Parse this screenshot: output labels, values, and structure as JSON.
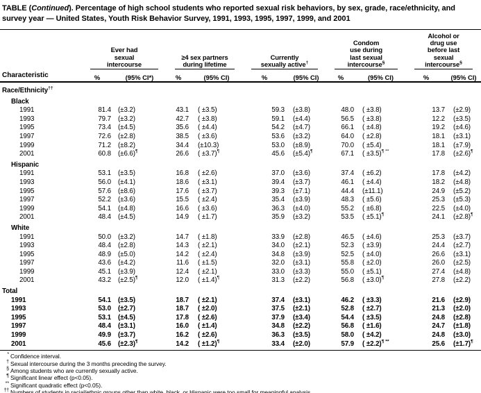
{
  "title": {
    "part1": "TABLE (",
    "italic": "Continued",
    "part2": "). Percentage of high school students who reported sexual risk behaviors, by sex, grade, race/ethnicity, and survey year — United States, Youth Risk Behavior Survey, 1991, 1993, 1995, 1997, 1999, and 2001"
  },
  "header": {
    "characteristic": "Characteristic",
    "groups": [
      {
        "lines": [
          "Ever had",
          "sexual",
          "intercourse"
        ],
        "pct": "%",
        "ci": "(95% CI*)"
      },
      {
        "lines": [
          "≥4 sex partners",
          "during lifetime"
        ],
        "pct": "%",
        "ci": "(95% CI)"
      },
      {
        "lines": [
          "Currently",
          {
            "text": "sexually active",
            "sup": "†"
          }
        ],
        "pct": "%",
        "ci": "(95% CI)"
      },
      {
        "lines": [
          "Condom",
          "use during",
          "last sexual",
          {
            "text": "intercourse",
            "sup": "§"
          }
        ],
        "pct": "%",
        "ci": "(95% CI)"
      },
      {
        "lines": [
          "Alcohol or",
          "drug use",
          "before last",
          "sexual",
          {
            "text": "intercourse",
            "sup": "§"
          }
        ],
        "pct": "%",
        "ci": "(95% CI)"
      }
    ]
  },
  "sections": [
    {
      "label": "Race/Ethnicity",
      "sup": "††",
      "level": 0,
      "row_indent": 2,
      "bold_rows": false,
      "rows": []
    },
    {
      "label": "Black",
      "sup": "",
      "level": 1,
      "row_indent": 2,
      "bold_rows": false,
      "rows": [
        {
          "label": "1991",
          "cells": [
            [
              "81.4",
              "(±3.2)",
              ""
            ],
            [
              "43.1",
              "( ±3.5)",
              ""
            ],
            [
              "59.3",
              "(±3.8)",
              ""
            ],
            [
              "48.0",
              "( ±3.8)",
              ""
            ],
            [
              "13.7",
              "(±2.9)",
              ""
            ]
          ]
        },
        {
          "label": "1993",
          "cells": [
            [
              "79.7",
              "(±3.2)",
              ""
            ],
            [
              "42.7",
              "( ±3.8)",
              ""
            ],
            [
              "59.1",
              "(±4.4)",
              ""
            ],
            [
              "56.5",
              "( ±3.8)",
              ""
            ],
            [
              "12.2",
              "(±3.5)",
              ""
            ]
          ]
        },
        {
          "label": "1995",
          "cells": [
            [
              "73.4",
              "(±4.5)",
              ""
            ],
            [
              "35.6",
              "( ±4.4)",
              ""
            ],
            [
              "54.2",
              "(±4.7)",
              ""
            ],
            [
              "66.1",
              "( ±4.8)",
              ""
            ],
            [
              "19.2",
              "(±4.6)",
              ""
            ]
          ]
        },
        {
          "label": "1997",
          "cells": [
            [
              "72.6",
              "(±2.8)",
              ""
            ],
            [
              "38.5",
              "( ±3.6)",
              ""
            ],
            [
              "53.6",
              "(±3.2)",
              ""
            ],
            [
              "64.0",
              "( ±2.8)",
              ""
            ],
            [
              "18.1",
              "(±3.1)",
              ""
            ]
          ]
        },
        {
          "label": "1999",
          "cells": [
            [
              "71.2",
              "(±8.2)",
              ""
            ],
            [
              "34.4",
              "(±10.3)",
              ""
            ],
            [
              "53.0",
              "(±8.9)",
              ""
            ],
            [
              "70.0",
              "( ±5.4)",
              ""
            ],
            [
              "18.1",
              "(±7.9)",
              ""
            ]
          ]
        },
        {
          "label": "2001",
          "cells": [
            [
              "60.8",
              "(±6.6)",
              "¶"
            ],
            [
              "26.6",
              "( ±3.7)",
              "¶"
            ],
            [
              "45.6",
              "(±5.4)",
              "¶"
            ],
            [
              "67.1",
              "( ±3.5)",
              "¶ **"
            ],
            [
              "17.8",
              "(±2.6)",
              "¶"
            ]
          ]
        }
      ]
    },
    {
      "label": "Hispanic",
      "sup": "",
      "level": 1,
      "row_indent": 2,
      "bold_rows": false,
      "rows": [
        {
          "label": "1991",
          "cells": [
            [
              "53.1",
              "(±3.5)",
              ""
            ],
            [
              "16.8",
              "( ±2.6)",
              ""
            ],
            [
              "37.0",
              "(±3.6)",
              ""
            ],
            [
              "37.4",
              "( ±6.2)",
              ""
            ],
            [
              "17.8",
              "(±4.2)",
              ""
            ]
          ]
        },
        {
          "label": "1993",
          "cells": [
            [
              "56.0",
              "(±4.1)",
              ""
            ],
            [
              "18.6",
              "( ±3.1)",
              ""
            ],
            [
              "39.4",
              "(±3.7)",
              ""
            ],
            [
              "46.1",
              "( ±4.4)",
              ""
            ],
            [
              "18.2",
              "(±4.8)",
              ""
            ]
          ]
        },
        {
          "label": "1995",
          "cells": [
            [
              "57.6",
              "(±8.6)",
              ""
            ],
            [
              "17.6",
              "( ±3.7)",
              ""
            ],
            [
              "39.3",
              "(±7.1)",
              ""
            ],
            [
              "44.4",
              "(±11.1)",
              ""
            ],
            [
              "24.9",
              "(±5.2)",
              ""
            ]
          ]
        },
        {
          "label": "1997",
          "cells": [
            [
              "52.2",
              "(±3.6)",
              ""
            ],
            [
              "15.5",
              "( ±2.4)",
              ""
            ],
            [
              "35.4",
              "(±3.9)",
              ""
            ],
            [
              "48.3",
              "( ±5.6)",
              ""
            ],
            [
              "25.3",
              "(±5.3)",
              ""
            ]
          ]
        },
        {
          "label": "1999",
          "cells": [
            [
              "54.1",
              "(±4.8)",
              ""
            ],
            [
              "16.6",
              "( ±3.6)",
              ""
            ],
            [
              "36.3",
              "(±4.0)",
              ""
            ],
            [
              "55.2",
              "( ±6.8)",
              ""
            ],
            [
              "22.5",
              "(±4.0)",
              ""
            ]
          ]
        },
        {
          "label": "2001",
          "cells": [
            [
              "48.4",
              "(±4.5)",
              ""
            ],
            [
              "14.9",
              "( ±1.7)",
              ""
            ],
            [
              "35.9",
              "(±3.2)",
              ""
            ],
            [
              "53.5",
              "( ±5.1)",
              "¶"
            ],
            [
              "24.1",
              "(±2.8)",
              "¶"
            ]
          ]
        }
      ]
    },
    {
      "label": "White",
      "sup": "",
      "level": 1,
      "row_indent": 2,
      "bold_rows": false,
      "rows": [
        {
          "label": "1991",
          "cells": [
            [
              "50.0",
              "(±3.2)",
              ""
            ],
            [
              "14.7",
              "( ±1.8)",
              ""
            ],
            [
              "33.9",
              "(±2.8)",
              ""
            ],
            [
              "46.5",
              "( ±4.6)",
              ""
            ],
            [
              "25.3",
              "(±3.7)",
              ""
            ]
          ]
        },
        {
          "label": "1993",
          "cells": [
            [
              "48.4",
              "(±2.8)",
              ""
            ],
            [
              "14.3",
              "( ±2.1)",
              ""
            ],
            [
              "34.0",
              "(±2.1)",
              ""
            ],
            [
              "52.3",
              "( ±3.9)",
              ""
            ],
            [
              "24.4",
              "(±2.7)",
              ""
            ]
          ]
        },
        {
          "label": "1995",
          "cells": [
            [
              "48.9",
              "(±5.0)",
              ""
            ],
            [
              "14.2",
              "( ±2.4)",
              ""
            ],
            [
              "34.8",
              "(±3.9)",
              ""
            ],
            [
              "52.5",
              "( ±4.0)",
              ""
            ],
            [
              "26.6",
              "(±3.1)",
              ""
            ]
          ]
        },
        {
          "label": "1997",
          "cells": [
            [
              "43.6",
              "(±4.2)",
              ""
            ],
            [
              "11.6",
              "( ±1.5)",
              ""
            ],
            [
              "32.0",
              "(±3.1)",
              ""
            ],
            [
              "55.8",
              "( ±2.0)",
              ""
            ],
            [
              "26.0",
              "(±2.5)",
              ""
            ]
          ]
        },
        {
          "label": "1999",
          "cells": [
            [
              "45.1",
              "(±3.9)",
              ""
            ],
            [
              "12.4",
              "( ±2.1)",
              ""
            ],
            [
              "33.0",
              "(±3.3)",
              ""
            ],
            [
              "55.0",
              "( ±5.1)",
              ""
            ],
            [
              "27.4",
              "(±4.8)",
              ""
            ]
          ]
        },
        {
          "label": "2001",
          "cells": [
            [
              "43.2",
              "(±2.5)",
              "¶"
            ],
            [
              "12.0",
              "( ±1.4)",
              "¶"
            ],
            [
              "31.3",
              "(±2.2)",
              ""
            ],
            [
              "56.8",
              "( ±3.0)",
              "¶"
            ],
            [
              "27.8",
              "(±2.2)",
              ""
            ]
          ]
        }
      ]
    },
    {
      "label": "Total",
      "sup": "",
      "level": 0,
      "row_indent": 1,
      "bold_rows": true,
      "rows": [
        {
          "label": "1991",
          "cells": [
            [
              "54.1",
              "(±3.5)",
              ""
            ],
            [
              "18.7",
              "( ±2.1)",
              ""
            ],
            [
              "37.4",
              "(±3.1)",
              ""
            ],
            [
              "46.2",
              "( ±3.3)",
              ""
            ],
            [
              "21.6",
              "(±2.9)",
              ""
            ]
          ]
        },
        {
          "label": "1993",
          "cells": [
            [
              "53.0",
              "(±2.7)",
              ""
            ],
            [
              "18.7",
              "( ±2.0)",
              ""
            ],
            [
              "37.5",
              "(±2.1)",
              ""
            ],
            [
              "52.8",
              "( ±2.7)",
              ""
            ],
            [
              "21.3",
              "(±2.0)",
              ""
            ]
          ]
        },
        {
          "label": "1995",
          "cells": [
            [
              "53.1",
              "(±4.5)",
              ""
            ],
            [
              "17.8",
              "( ±2.6)",
              ""
            ],
            [
              "37.9",
              "(±3.4)",
              ""
            ],
            [
              "54.4",
              "( ±3.5)",
              ""
            ],
            [
              "24.8",
              "(±2.8)",
              ""
            ]
          ]
        },
        {
          "label": "1997",
          "cells": [
            [
              "48.4",
              "(±3.1)",
              ""
            ],
            [
              "16.0",
              "( ±1.4)",
              ""
            ],
            [
              "34.8",
              "(±2.2)",
              ""
            ],
            [
              "56.8",
              "( ±1.6)",
              ""
            ],
            [
              "24.7",
              "(±1.8)",
              ""
            ]
          ]
        },
        {
          "label": "1999",
          "cells": [
            [
              "49.9",
              "(±3.7)",
              ""
            ],
            [
              "16.2",
              "( ±2.6)",
              ""
            ],
            [
              "36.3",
              "(±3.5)",
              ""
            ],
            [
              "58.0",
              "( ±4.2)",
              ""
            ],
            [
              "24.8",
              "(±3.0)",
              ""
            ]
          ]
        },
        {
          "label": "2001",
          "cells": [
            [
              "45.6",
              "(±2.3)",
              "¶"
            ],
            [
              "14.2",
              "( ±1.2)",
              "¶"
            ],
            [
              "33.4",
              "(±2.0)",
              ""
            ],
            [
              "57.9",
              "( ±2.2)",
              "¶ **"
            ],
            [
              "25.6",
              "(±1.7)",
              "¶"
            ]
          ]
        }
      ]
    }
  ],
  "footnotes": [
    {
      "marker": "*",
      "text": "Confidence interval."
    },
    {
      "marker": "†",
      "text": "Sexual intercourse during the 3 months preceding the survey."
    },
    {
      "marker": "§",
      "text": "Among students who are currently sexually active."
    },
    {
      "marker": "¶",
      "text": "Significant linear effect (p<0.05)."
    },
    {
      "marker": "**",
      "text": "Significant quadratic effect (p<0.05)."
    },
    {
      "marker": "††",
      "text": "Numbers of students in racial/ethnic groups other than white, black, or Hispanic were too small for meaningful analysis."
    }
  ]
}
